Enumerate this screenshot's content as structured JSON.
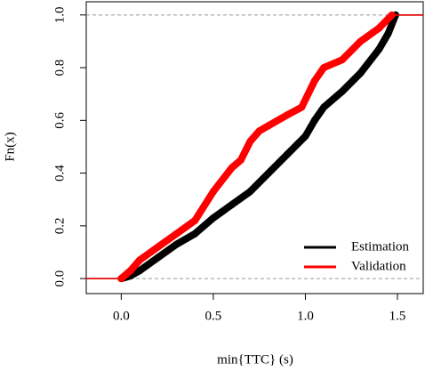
{
  "chart_data": {
    "type": "ecdf",
    "xlabel": "min{TTC} (s)",
    "ylabel": "Fn(x)",
    "xlim": [
      -0.19,
      1.64
    ],
    "ylim": [
      -0.057,
      1.05
    ],
    "xticks": [
      {
        "value": 0,
        "label": "0.0"
      },
      0.5,
      {
        "value": 1,
        "label": "1.0"
      },
      1.5
    ],
    "yticks": [
      {
        "value": 0,
        "label": "0.0"
      },
      0.2,
      0.4,
      0.6,
      0.8,
      {
        "value": 1,
        "label": "1.0"
      }
    ],
    "legend": "bottom-right",
    "series": [
      {
        "name": "Estimation",
        "color": "#000000",
        "x": [
          0.0,
          0.05,
          0.1,
          0.2,
          0.3,
          0.4,
          0.5,
          0.6,
          0.7,
          0.8,
          0.9,
          1.0,
          1.05,
          1.1,
          1.2,
          1.3,
          1.4,
          1.45,
          1.49
        ],
        "values": [
          0,
          0.01,
          0.03,
          0.08,
          0.13,
          0.17,
          0.23,
          0.28,
          0.33,
          0.4,
          0.47,
          0.54,
          0.6,
          0.65,
          0.71,
          0.78,
          0.87,
          0.93,
          1.0
        ]
      },
      {
        "name": "Validation",
        "color": "#ff0000",
        "x": [
          0.0,
          0.05,
          0.1,
          0.2,
          0.3,
          0.4,
          0.5,
          0.6,
          0.65,
          0.7,
          0.75,
          0.8,
          0.9,
          0.98,
          1.05,
          1.1,
          1.2,
          1.3,
          1.4,
          1.47
        ],
        "values": [
          0,
          0.03,
          0.07,
          0.12,
          0.17,
          0.22,
          0.33,
          0.42,
          0.45,
          0.52,
          0.56,
          0.58,
          0.62,
          0.65,
          0.75,
          0.8,
          0.83,
          0.9,
          0.95,
          1.0
        ]
      }
    ]
  }
}
